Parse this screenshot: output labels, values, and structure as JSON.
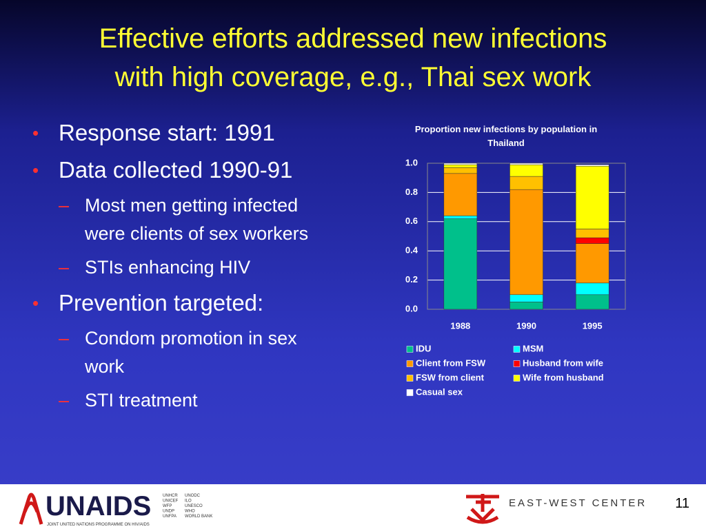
{
  "title": [
    "Effective efforts addressed new infections",
    "with high coverage, e.g., Thai sex work"
  ],
  "bullets": [
    {
      "text": "Response start: 1991"
    },
    {
      "text": "Data collected 1990-91",
      "sub": [
        "Most men getting infected were clients of sex workers",
        "STIs enhancing HIV"
      ]
    },
    {
      "text": "Prevention targeted:",
      "sub": [
        "Condom promotion in sex work",
        "STI treatment"
      ]
    }
  ],
  "chart_data": {
    "type": "stacked_bar",
    "title": "Proportion new infections by population in Thailand",
    "categories": [
      "1988",
      "1990",
      "1995"
    ],
    "series": [
      {
        "name": "IDU",
        "color": "#00c08b",
        "values": [
          0.62,
          0.05,
          0.1
        ]
      },
      {
        "name": "MSM",
        "color": "#00ffff",
        "values": [
          0.02,
          0.05,
          0.08
        ]
      },
      {
        "name": "Client from FSW",
        "color": "#ff9900",
        "values": [
          0.29,
          0.72,
          0.27
        ]
      },
      {
        "name": "Husband from wife",
        "color": "#ff0000",
        "values": [
          0,
          0,
          0.04
        ]
      },
      {
        "name": "FSW from client",
        "color": "#ffc000",
        "values": [
          0.04,
          0.09,
          0.06
        ]
      },
      {
        "name": "Wife from husband",
        "color": "#ffff00",
        "values": [
          0.02,
          0.08,
          0.43
        ]
      },
      {
        "name": "Casual sex",
        "color": "#ffffff",
        "values": [
          0.01,
          0.01,
          0.01
        ]
      }
    ],
    "ylim": [
      0,
      1
    ],
    "yticks": [
      {
        "value": 0,
        "label": "0.0"
      },
      0.2,
      0.4,
      0.6,
      0.8,
      {
        "value": 1,
        "label": "1.0"
      }
    ],
    "grid": true
  },
  "footer": {
    "logo": "UNAIDS",
    "programme": "JOINT UNITED NATIONS PROGRAMME ON HIV/AIDS",
    "cosponsors_left": [
      "UNHCR",
      "UNICEF",
      "WFP",
      "UNDP",
      "UNFPA"
    ],
    "cosponsors_right": [
      "UNODC",
      "ILO",
      "UNESCO",
      "WHO",
      "WORLD BANK"
    ],
    "partner": "EAST-WEST CENTER",
    "page_number": "11"
  }
}
